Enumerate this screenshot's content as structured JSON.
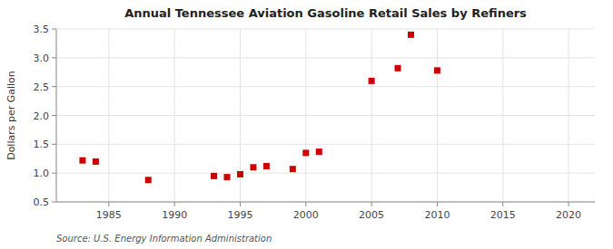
{
  "chart_data": {
    "type": "scatter",
    "title": "Annual Tennessee Aviation Gasoline Retail Sales by Refiners",
    "ylabel": "Dollars per Gallon",
    "source": "Source: U.S. Energy Information Administration",
    "x": [
      1983,
      1984,
      1988,
      1993,
      1994,
      1995,
      1996,
      1997,
      1999,
      2000,
      2001,
      2005,
      2007,
      2008,
      2010
    ],
    "values": [
      1.22,
      1.2,
      0.88,
      0.95,
      0.93,
      0.98,
      1.1,
      1.12,
      1.07,
      1.35,
      1.37,
      2.6,
      2.82,
      3.4,
      2.78
    ],
    "color": "#cc0000",
    "marker": "square",
    "xlim": [
      1981,
      2022
    ],
    "ylim": [
      0.5,
      3.5
    ],
    "xticks": [
      1985,
      1990,
      1995,
      2000,
      2005,
      2010,
      2015,
      2020
    ],
    "yticks": [
      0.5,
      {
        "value": 1,
        "label": "1.0"
      },
      1.5,
      {
        "value": 2,
        "label": "2.0"
      },
      2.5,
      {
        "value": 3,
        "label": "3.0"
      },
      3.5
    ],
    "grid": true
  }
}
